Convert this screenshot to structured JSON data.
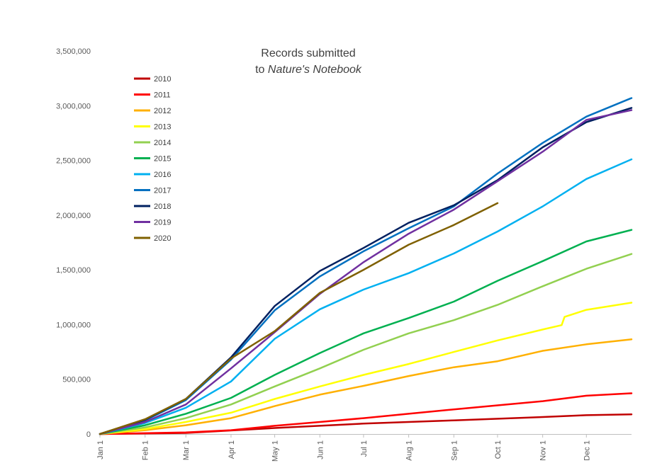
{
  "chart_data": {
    "type": "line",
    "title_line1": "Records submitted",
    "title_line2_prefix": "to ",
    "title_line2_italic": "Nature's Notebook",
    "xlabel": "",
    "ylabel": "",
    "ylim": [
      0,
      3500000
    ],
    "yticks": [
      0,
      500000,
      1000000,
      1500000,
      2000000,
      2500000,
      3000000,
      3500000
    ],
    "ytick_labels": [
      "0",
      "500,000",
      "1,000,000",
      "1,500,000",
      "2,000,000",
      "2,500,000",
      "3,000,000",
      "3,500,000"
    ],
    "x_unit": "day of year",
    "xlim": [
      1,
      366
    ],
    "xticks": [
      1,
      32,
      60,
      91,
      121,
      152,
      182,
      213,
      244,
      274,
      305,
      335
    ],
    "xtick_labels": [
      "Jan 1",
      "Feb 1",
      "Mar 1",
      "Apr 1",
      "May 1",
      "Jun 1",
      "Jul 1",
      "Aug 1",
      "Sep 1",
      "Oct 1",
      "Nov 1",
      "Dec 1"
    ],
    "grid": false,
    "legend_position": "top-left",
    "series": [
      {
        "name": "2010",
        "color": "#c00000",
        "x": [
          1,
          60,
          121,
          182,
          244,
          305,
          335,
          366
        ],
        "values": [
          0,
          10000,
          55000,
          95000,
          125000,
          155000,
          172000,
          180000
        ]
      },
      {
        "name": "2011",
        "color": "#ff0000",
        "x": [
          1,
          60,
          91,
          121,
          152,
          182,
          213,
          244,
          274,
          305,
          335,
          366
        ],
        "values": [
          0,
          15000,
          35000,
          75000,
          110000,
          145000,
          185000,
          225000,
          262000,
          300000,
          350000,
          372000
        ]
      },
      {
        "name": "2012",
        "color": "#ffb000",
        "x": [
          1,
          32,
          60,
          91,
          121,
          152,
          182,
          213,
          244,
          274,
          305,
          335,
          366
        ],
        "values": [
          0,
          35000,
          80000,
          145000,
          255000,
          360000,
          440000,
          530000,
          610000,
          665000,
          760000,
          820000,
          865000
        ]
      },
      {
        "name": "2013",
        "color": "#ffff00",
        "x": [
          1,
          32,
          60,
          91,
          121,
          152,
          182,
          213,
          244,
          274,
          305,
          318,
          320,
          335,
          366
        ],
        "values": [
          0,
          45000,
          110000,
          195000,
          320000,
          435000,
          540000,
          640000,
          750000,
          855000,
          955000,
          995000,
          1070000,
          1135000,
          1200000
        ]
      },
      {
        "name": "2014",
        "color": "#92d050",
        "x": [
          1,
          32,
          60,
          91,
          121,
          152,
          182,
          213,
          244,
          274,
          305,
          335,
          366
        ],
        "values": [
          0,
          60000,
          145000,
          270000,
          435000,
          600000,
          770000,
          920000,
          1040000,
          1180000,
          1350000,
          1510000,
          1645000
        ]
      },
      {
        "name": "2015",
        "color": "#00b050",
        "x": [
          1,
          32,
          60,
          91,
          121,
          152,
          182,
          213,
          244,
          274,
          305,
          335,
          366
        ],
        "values": [
          0,
          80000,
          185000,
          330000,
          540000,
          740000,
          920000,
          1060000,
          1210000,
          1400000,
          1580000,
          1760000,
          1865000
        ]
      },
      {
        "name": "2016",
        "color": "#00b0f0",
        "x": [
          1,
          32,
          60,
          91,
          121,
          152,
          182,
          213,
          244,
          274,
          305,
          335,
          366
        ],
        "values": [
          0,
          100000,
          240000,
          480000,
          870000,
          1140000,
          1320000,
          1470000,
          1650000,
          1850000,
          2080000,
          2330000,
          2510000
        ]
      },
      {
        "name": "2017",
        "color": "#0070c0",
        "x": [
          1,
          32,
          60,
          91,
          121,
          152,
          182,
          213,
          244,
          274,
          305,
          335,
          366
        ],
        "values": [
          0,
          125000,
          310000,
          680000,
          1130000,
          1440000,
          1670000,
          1880000,
          2080000,
          2380000,
          2660000,
          2900000,
          3070000
        ]
      },
      {
        "name": "2018",
        "color": "#002060",
        "x": [
          1,
          32,
          60,
          91,
          121,
          152,
          182,
          213,
          244,
          274,
          305,
          335,
          366
        ],
        "values": [
          0,
          130000,
          320000,
          700000,
          1170000,
          1490000,
          1700000,
          1930000,
          2090000,
          2320000,
          2620000,
          2850000,
          2980000
        ]
      },
      {
        "name": "2019",
        "color": "#7030a0",
        "x": [
          1,
          32,
          60,
          91,
          121,
          152,
          182,
          213,
          244,
          274,
          305,
          335,
          366
        ],
        "values": [
          0,
          110000,
          270000,
          600000,
          930000,
          1280000,
          1570000,
          1830000,
          2050000,
          2310000,
          2580000,
          2870000,
          2960000
        ]
      },
      {
        "name": "2020",
        "color": "#7f6000",
        "x": [
          1,
          32,
          60,
          91,
          121,
          152,
          182,
          213,
          244,
          274
        ],
        "values": [
          0,
          135000,
          320000,
          690000,
          940000,
          1290000,
          1500000,
          1730000,
          1910000,
          2110000
        ]
      }
    ]
  }
}
